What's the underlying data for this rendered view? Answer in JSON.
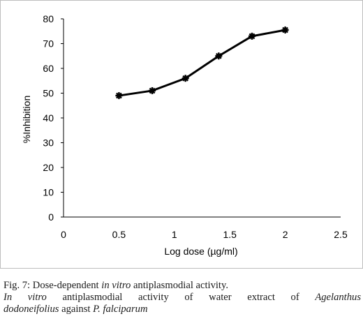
{
  "chart_data": {
    "type": "line",
    "title": "",
    "xlabel": "Log dose (µg/ml)",
    "ylabel": "%Inhibition",
    "xlim": [
      0,
      2.5
    ],
    "ylim": [
      0,
      80
    ],
    "x_ticks": [
      "0",
      "0.5",
      "1",
      "1.5",
      "2",
      "2.5"
    ],
    "y_ticks": [
      "0",
      "10",
      "20",
      "30",
      "40",
      "50",
      "60",
      "70",
      "80"
    ],
    "grid": false,
    "legend": "none",
    "series": [
      {
        "x": [
          0.5,
          0.8,
          1.1,
          1.4,
          1.7,
          2.0
        ],
        "y": [
          49,
          51,
          56,
          65,
          73,
          75.5
        ],
        "color": "#000000",
        "marker": "star"
      }
    ]
  },
  "caption": {
    "label": "Fig. 7:",
    "line1_pre": "Dose-dependent ",
    "line1_italic": "in vitro",
    "line1_post": " antiplasmodial activity.",
    "line2_italic_a": "In vitro",
    "line2_mid": " antiplasmodial activity of water extract of ",
    "line2_italic_b": "Agelanthus",
    "line3_italic_a": "dodoneifolius",
    "line3_mid": " against ",
    "line3_italic_b": "P. falciparum"
  }
}
